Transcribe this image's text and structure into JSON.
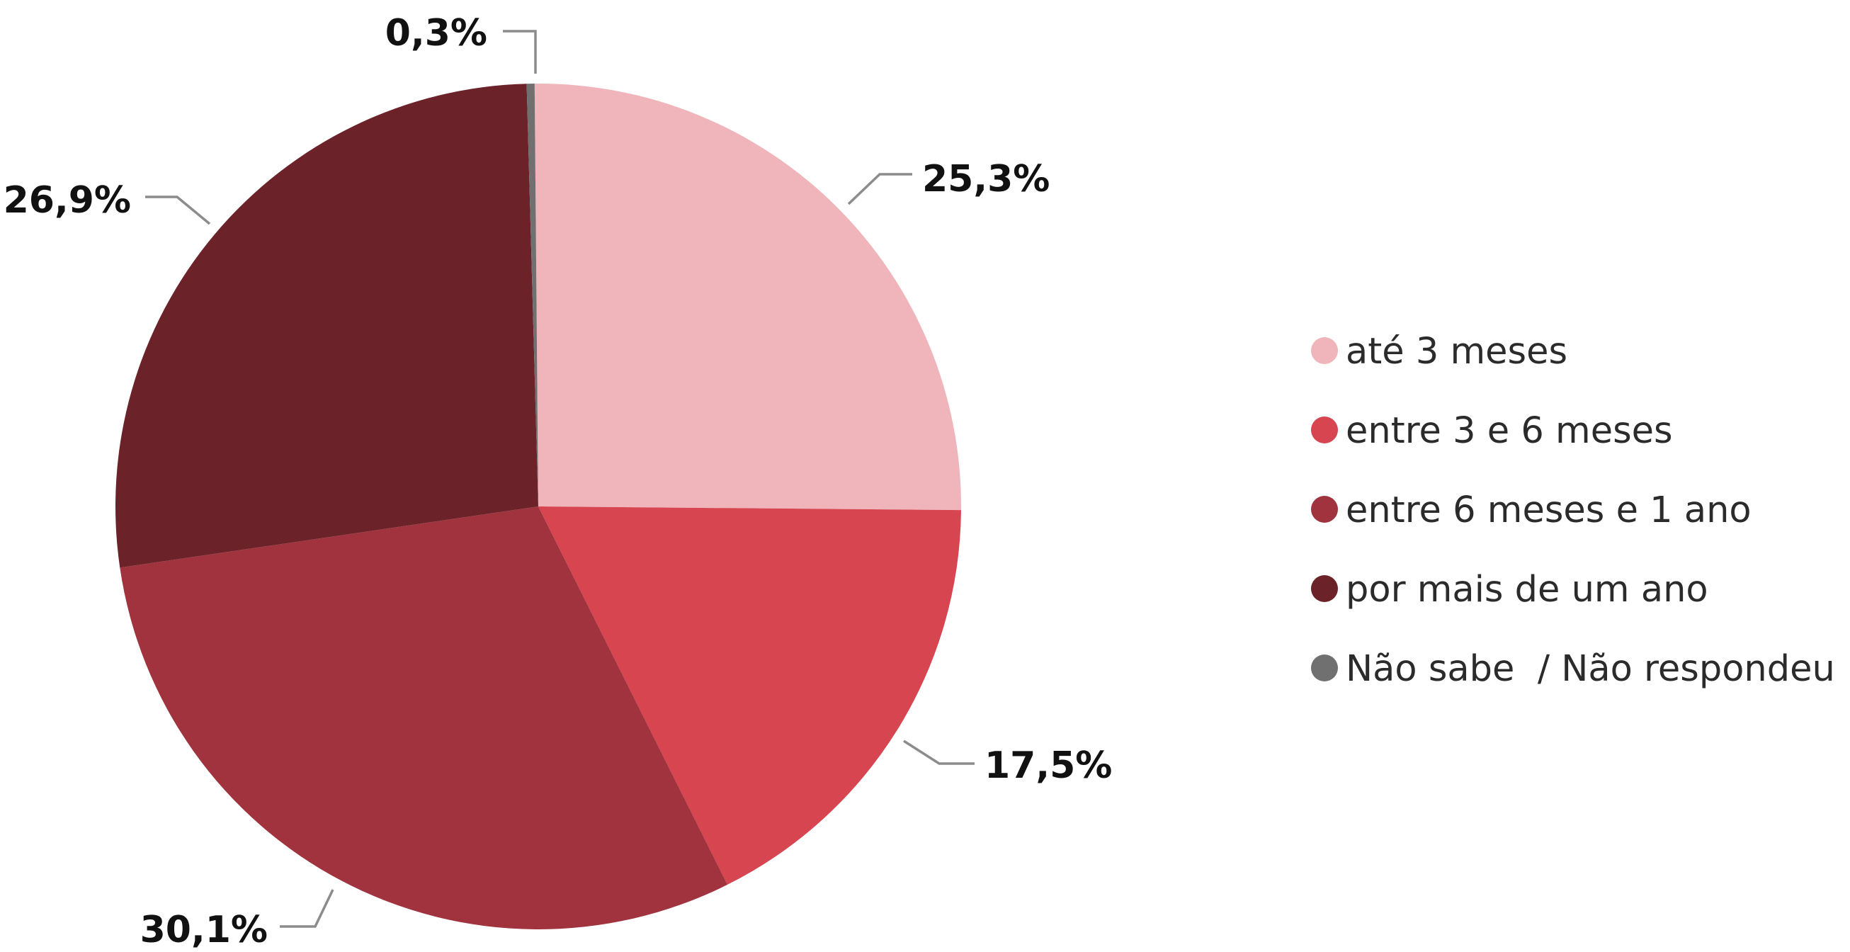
{
  "chart_data": {
    "type": "pie",
    "title": "",
    "legend_position": "right",
    "slices": [
      {
        "label": "até 3 meses",
        "value": 25.3,
        "display": "25,3%",
        "color": "#F0B5BA"
      },
      {
        "label": "entre 3 e 6 meses",
        "value": 17.5,
        "display": "17,5%",
        "color": "#D64550"
      },
      {
        "label": "entre 6 meses e 1 ano",
        "value": 30.1,
        "display": "30,1%",
        "color": "#A1333E"
      },
      {
        "label": "por mais de um ano",
        "value": 26.9,
        "display": "26,9%",
        "color": "#6B2228"
      },
      {
        "label": "Não sabe  / Não respondeu",
        "value": 0.3,
        "display": "0,3%",
        "color": "#707070"
      }
    ]
  }
}
